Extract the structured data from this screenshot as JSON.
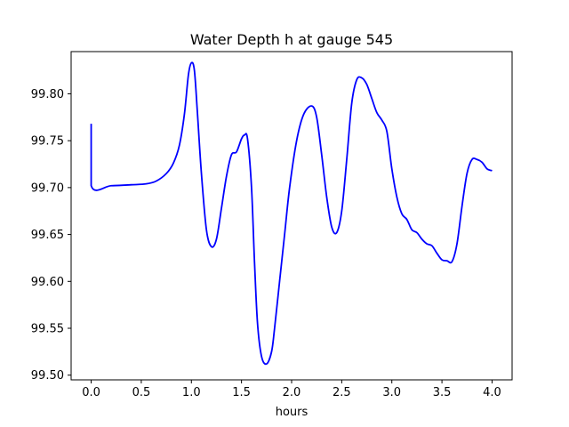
{
  "chart_data": {
    "type": "line",
    "title": "Water Depth h at gauge 545",
    "xlabel": "hours",
    "ylabel": "",
    "xlim": [
      -0.2,
      4.2
    ],
    "ylim": [
      99.495,
      99.845
    ],
    "xticks": [
      0.0,
      0.5,
      1.0,
      1.5,
      2.0,
      2.5,
      3.0,
      3.5,
      4.0
    ],
    "xtick_labels": [
      "0.0",
      "0.5",
      "1.0",
      "1.5",
      "2.0",
      "2.5",
      "3.0",
      "3.5",
      "4.0"
    ],
    "yticks": [
      99.5,
      99.55,
      99.6,
      99.65,
      99.7,
      99.75,
      99.8
    ],
    "ytick_labels": [
      "99.50",
      "99.55",
      "99.60",
      "99.65",
      "99.70",
      "99.75",
      "99.80"
    ],
    "grid": false,
    "line_color": "#0000ff",
    "series": [
      {
        "x": [
          0.0,
          0.0,
          0.2,
          0.4,
          0.55,
          0.65,
          0.75,
          0.82,
          0.88,
          0.93,
          0.97,
          1.0,
          1.03,
          1.06,
          1.1,
          1.15,
          1.2,
          1.25,
          1.3,
          1.35,
          1.4,
          1.45,
          1.5,
          1.53,
          1.56,
          1.6,
          1.63,
          1.66,
          1.7,
          1.75,
          1.8,
          1.83,
          1.88,
          1.93,
          1.98,
          2.05,
          2.12,
          2.2,
          2.25,
          2.3,
          2.35,
          2.4,
          2.45,
          2.5,
          2.55,
          2.6,
          2.65,
          2.7,
          2.75,
          2.8,
          2.85,
          2.9,
          2.95,
          3.0,
          3.05,
          3.1,
          3.15,
          3.2,
          3.25,
          3.3,
          3.35,
          3.4,
          3.45,
          3.5,
          3.55,
          3.6,
          3.65,
          3.7,
          3.75,
          3.8,
          3.85,
          3.9,
          3.95,
          4.0
        ],
        "y": [
          99.768,
          99.702,
          99.702,
          99.703,
          99.704,
          99.707,
          99.715,
          99.726,
          99.745,
          99.778,
          99.82,
          99.833,
          99.825,
          99.78,
          99.715,
          99.655,
          99.637,
          99.645,
          99.678,
          99.712,
          99.735,
          99.738,
          99.752,
          99.756,
          99.752,
          99.7,
          99.62,
          99.555,
          99.52,
          99.512,
          99.525,
          99.55,
          99.6,
          99.65,
          99.7,
          99.75,
          99.778,
          99.787,
          99.775,
          99.735,
          99.69,
          99.658,
          99.652,
          99.675,
          99.73,
          99.79,
          99.815,
          99.817,
          99.81,
          99.795,
          99.78,
          99.772,
          99.76,
          99.72,
          99.69,
          99.672,
          99.666,
          99.655,
          99.652,
          99.645,
          99.64,
          99.638,
          99.63,
          99.623,
          99.622,
          99.621,
          99.64,
          99.68,
          99.715,
          99.73,
          99.73,
          99.727,
          99.72,
          99.718
        ]
      }
    ]
  }
}
